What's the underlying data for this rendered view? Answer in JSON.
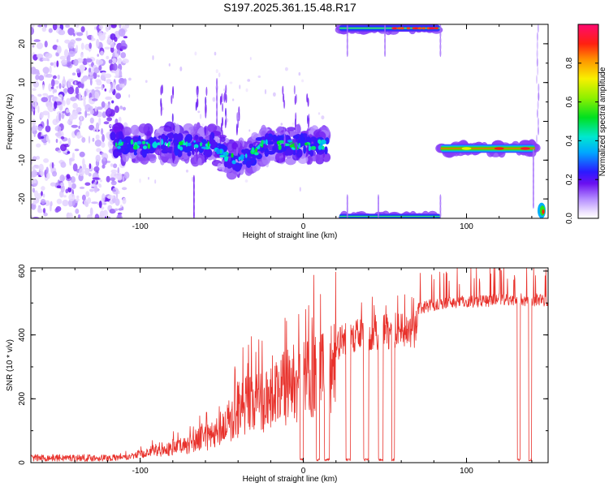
{
  "title": "S197.2025.361.15.48.R17",
  "colors": {
    "snr_line": "#e8322c",
    "axis": "#000000",
    "background": "#ffffff"
  },
  "chart_data": [
    {
      "type": "heatmap",
      "xlabel": "Height of straight line (km)",
      "ylabel": "Frequency (Hz)",
      "xlim": [
        -167,
        150
      ],
      "ylim": [
        -25,
        25
      ],
      "xticks": [
        -100,
        0,
        100
      ],
      "yticks": [
        -20,
        -10,
        0,
        10,
        20
      ],
      "colorbar": {
        "label": "Normalized spectral amplitude",
        "range": [
          0,
          1
        ],
        "ticks": [
          0.0,
          0.2,
          0.4,
          0.6,
          0.8
        ],
        "tick_labels": [
          "0.0",
          "0.2",
          "0.4",
          "0.6",
          "0.8"
        ]
      },
      "features": [
        {
          "name": "noise-region",
          "x_range": [
            -167,
            -108
          ],
          "y_range": [
            -25,
            25
          ],
          "amplitude": 0.08
        },
        {
          "name": "main-track",
          "x_range": [
            -117,
            15
          ],
          "center_freq": -6,
          "spread_hz": 4,
          "amplitude": 0.45
        },
        {
          "name": "right-track",
          "x_range": [
            84,
            142
          ],
          "center_freq": -7,
          "spread_hz": 1,
          "amplitude": 0.75
        },
        {
          "name": "top-track",
          "x_range": [
            22,
            84
          ],
          "center_freq": 24,
          "spread_hz": 1,
          "amplitude": 0.6
        },
        {
          "name": "bottom-track",
          "x_range": [
            22,
            84
          ],
          "center_freq": -24.5,
          "spread_hz": 1,
          "amplitude": 0.4
        },
        {
          "name": "corner-blob",
          "x_range": [
            142,
            150
          ],
          "center_freq": -23,
          "spread_hz": 2,
          "amplitude": 0.9
        }
      ]
    },
    {
      "type": "line",
      "xlabel": "Height of straight line (km)",
      "ylabel": "SNR (10 * v/v)",
      "xlim": [
        -167,
        150
      ],
      "ylim": [
        0,
        610
      ],
      "xticks": [
        -100,
        0,
        100
      ],
      "yticks": [
        0,
        200,
        400,
        600
      ],
      "envelope": [
        {
          "x": -167,
          "y": 15
        },
        {
          "x": -115,
          "y": 15
        },
        {
          "x": -100,
          "y": 35
        },
        {
          "x": -85,
          "y": 55
        },
        {
          "x": -70,
          "y": 80
        },
        {
          "x": -55,
          "y": 120
        },
        {
          "x": -45,
          "y": 180
        },
        {
          "x": -35,
          "y": 260
        },
        {
          "x": -25,
          "y": 270
        },
        {
          "x": -15,
          "y": 310
        },
        {
          "x": -5,
          "y": 355
        },
        {
          "x": 5,
          "y": 385
        },
        {
          "x": 15,
          "y": 405
        },
        {
          "x": 25,
          "y": 435
        },
        {
          "x": 35,
          "y": 455
        },
        {
          "x": 45,
          "y": 465
        },
        {
          "x": 55,
          "y": 470
        },
        {
          "x": 65,
          "y": 470
        },
        {
          "x": 75,
          "y": 490
        },
        {
          "x": 85,
          "y": 500
        },
        {
          "x": 100,
          "y": 505
        },
        {
          "x": 120,
          "y": 510
        },
        {
          "x": 150,
          "y": 510
        }
      ],
      "dropouts_km": [
        [
          -2,
          0
        ],
        [
          8,
          10
        ],
        [
          13,
          16
        ],
        [
          26,
          29
        ],
        [
          37,
          40
        ],
        [
          46,
          49
        ],
        [
          54,
          56
        ],
        [
          131,
          133
        ],
        [
          138,
          140
        ]
      ]
    }
  ]
}
